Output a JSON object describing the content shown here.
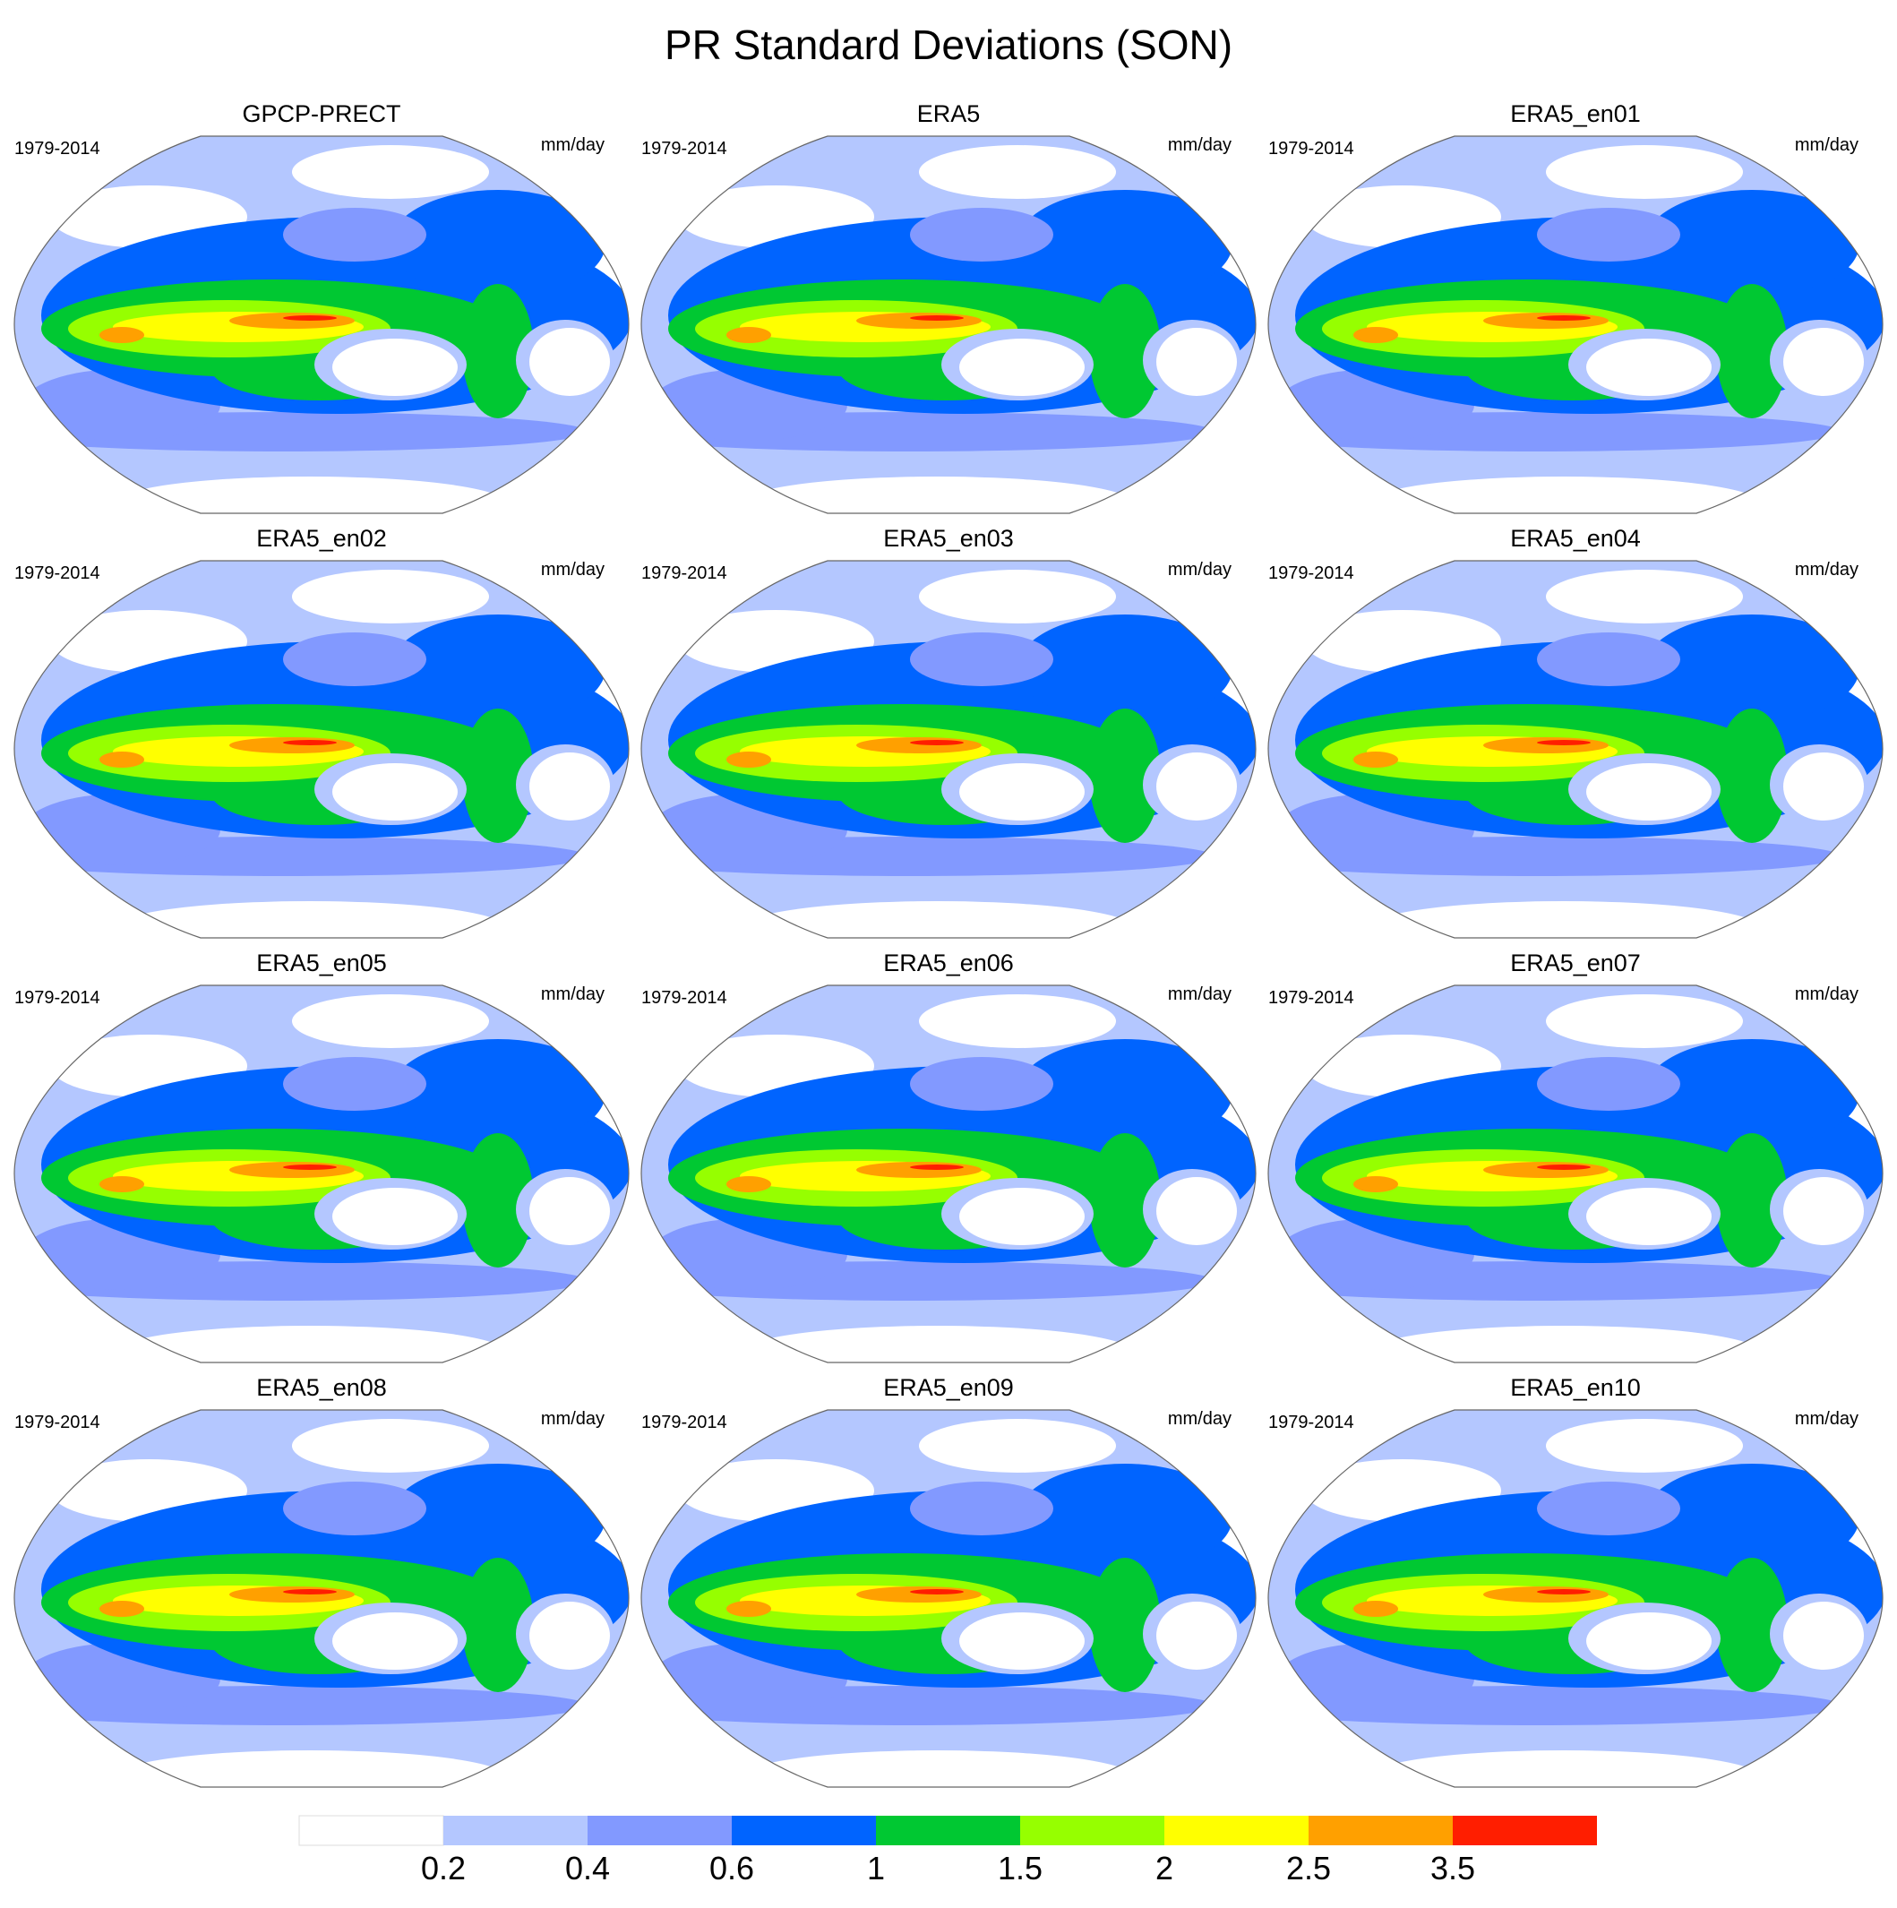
{
  "chart_data": {
    "type": "heatmap",
    "title": "PR Standard Deviations (SON)",
    "period": "1979-2014",
    "units": "mm/day",
    "panels": [
      {
        "title": "GPCP-PRECT"
      },
      {
        "title": "ERA5"
      },
      {
        "title": "ERA5_en01"
      },
      {
        "title": "ERA5_en02"
      },
      {
        "title": "ERA5_en03"
      },
      {
        "title": "ERA5_en04"
      },
      {
        "title": "ERA5_en05"
      },
      {
        "title": "ERA5_en06"
      },
      {
        "title": "ERA5_en07"
      },
      {
        "title": "ERA5_en08"
      },
      {
        "title": "ERA5_en09"
      },
      {
        "title": "ERA5_en10"
      }
    ],
    "colorbar": {
      "levels": [
        "0.2",
        "0.4",
        "0.6",
        "1",
        "1.5",
        "2",
        "2.5",
        "3.5"
      ],
      "colors": [
        "#ffffff",
        "#b4c7ff",
        "#8299ff",
        "#0064ff",
        "#00c832",
        "#96ff00",
        "#ffff00",
        "#ffa000",
        "#ff1e00"
      ]
    }
  }
}
